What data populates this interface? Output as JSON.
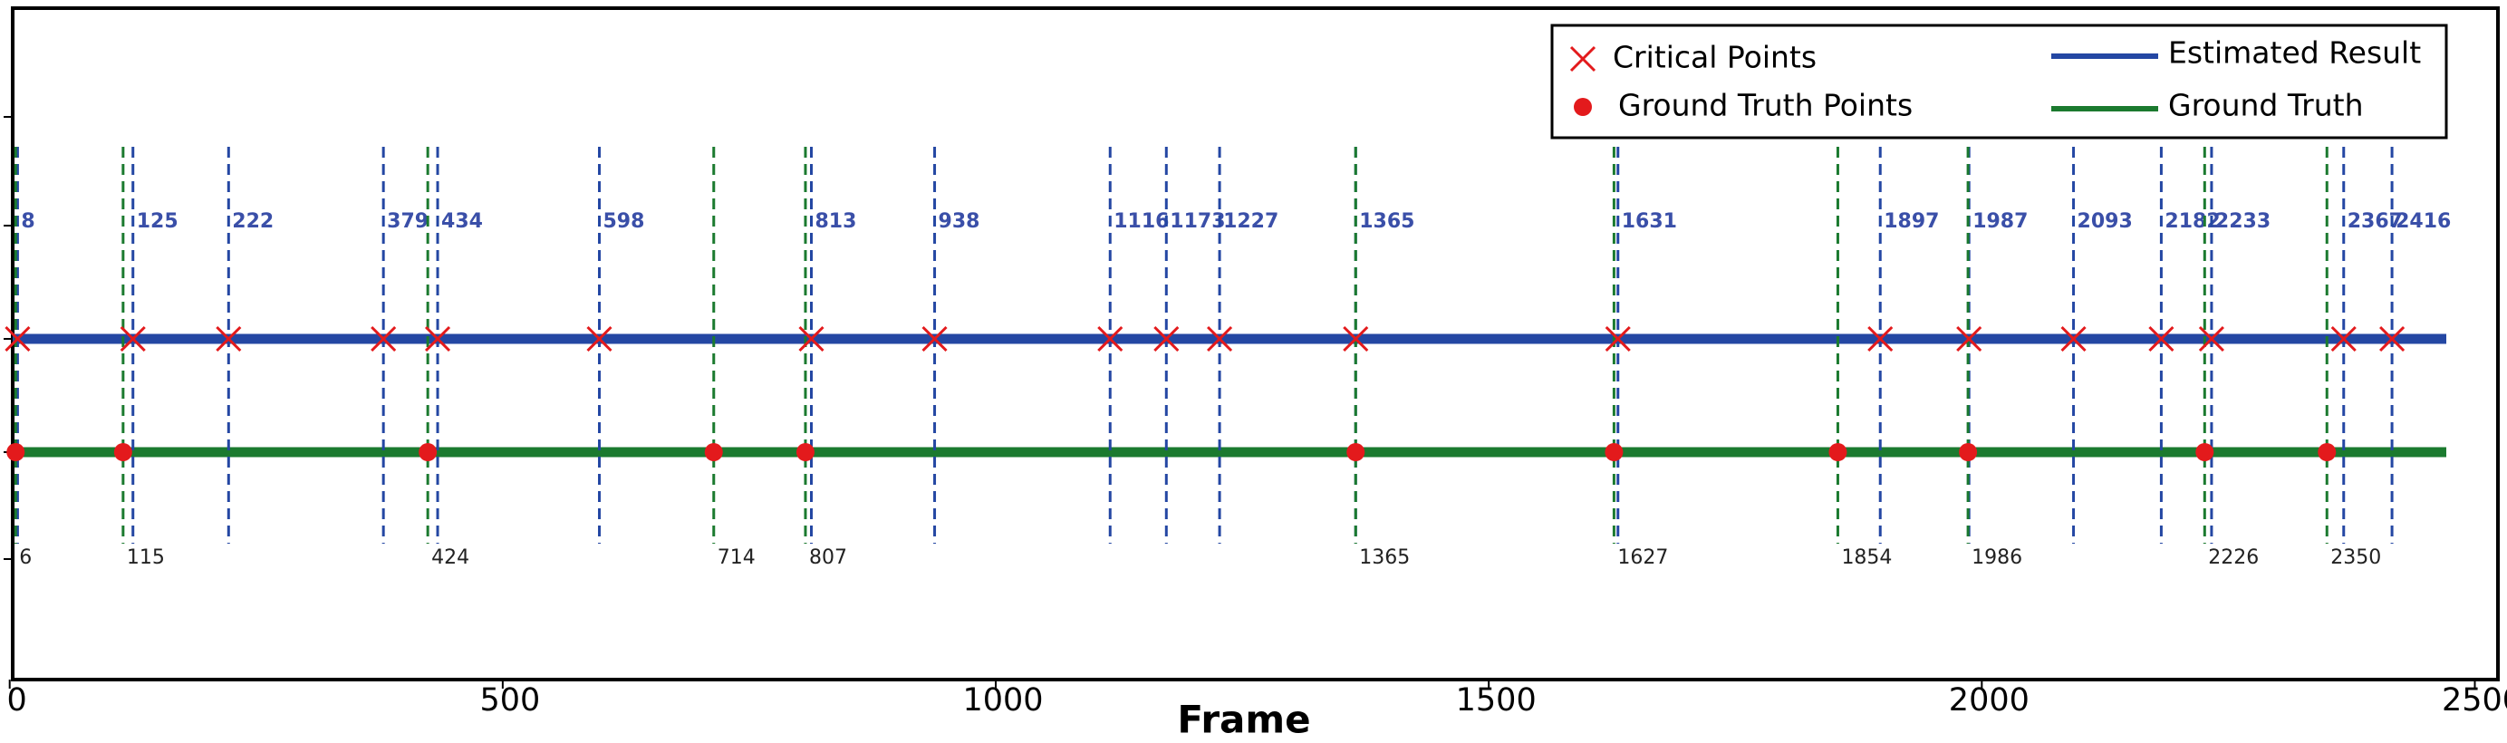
{
  "chart_data": {
    "type": "scatter",
    "xlabel": "Frame",
    "xlim": [
      0,
      2500
    ],
    "xticks": [
      0,
      500,
      1000,
      1500,
      2000,
      2500
    ],
    "legend": "upper right",
    "series": [
      {
        "name": "Critical Points",
        "marker": "x",
        "color": "#e31a1c",
        "line": "Estimated Result",
        "line_color": "#2447a3",
        "label_color": "#3a4fa8",
        "values": [
          8,
          125,
          222,
          379,
          434,
          598,
          813,
          938,
          1116,
          1173,
          1227,
          1365,
          1631,
          1897,
          1987,
          2093,
          2182,
          2233,
          2367,
          2416
        ]
      },
      {
        "name": "Ground Truth Points",
        "marker": "o",
        "color": "#e31a1c",
        "line": "Ground Truth",
        "line_color": "#1b7a2f",
        "label_color": "#222222",
        "values": [
          6,
          115,
          424,
          714,
          807,
          1365,
          1627,
          1854,
          1986,
          2226,
          2350
        ]
      }
    ]
  }
}
